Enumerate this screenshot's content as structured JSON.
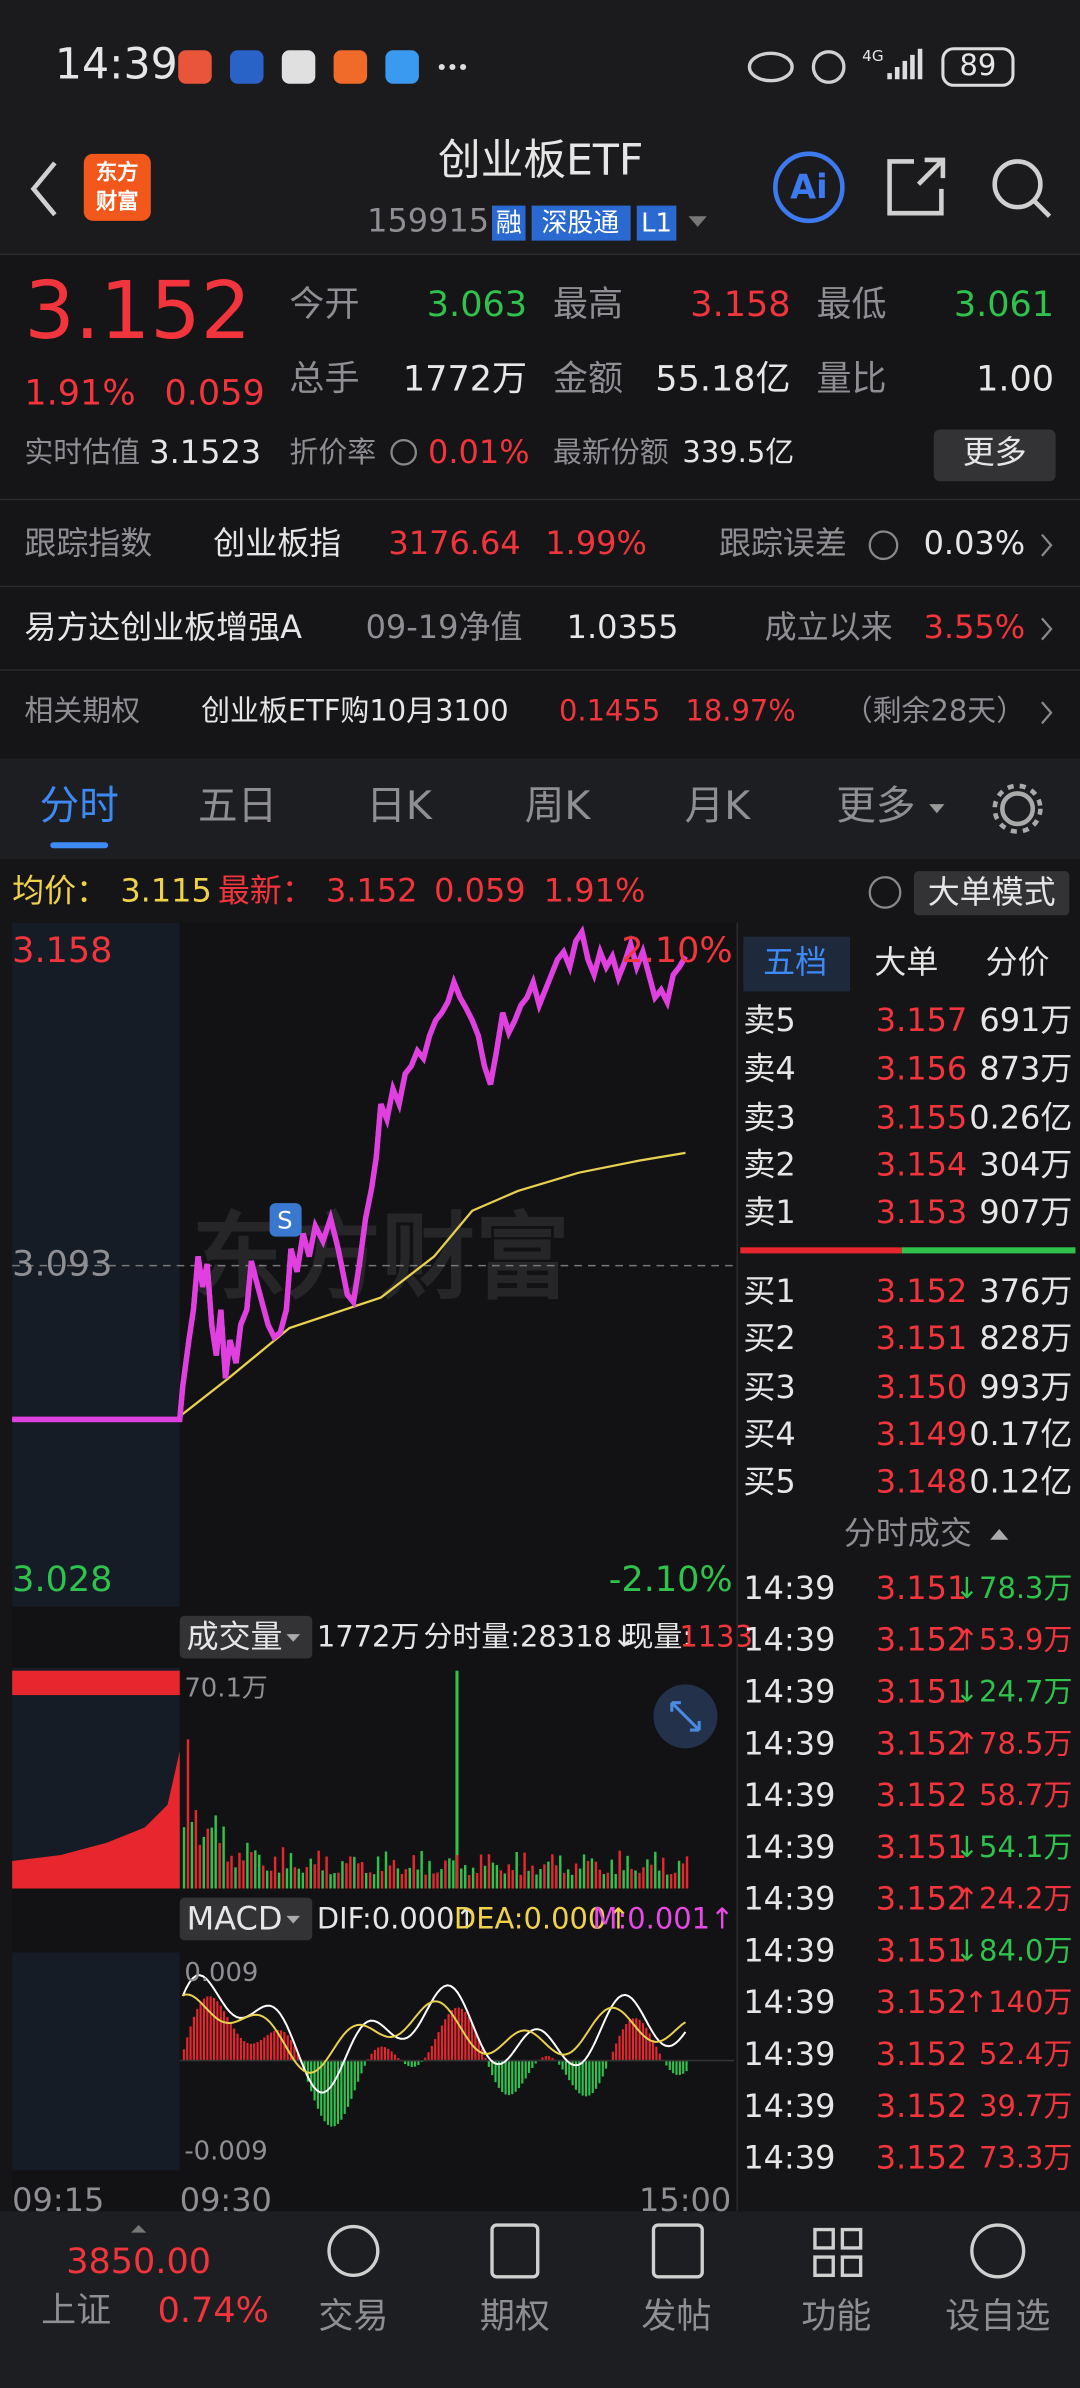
{
  "status_bar": {
    "time": "14:39",
    "network": "4G",
    "battery": "89"
  },
  "header": {
    "logo": [
      "东方",
      "财富"
    ],
    "title": "创业板ETF",
    "code": "159915",
    "badges": [
      "融",
      "深股通",
      "L1"
    ],
    "ai": "Ai"
  },
  "quote": {
    "price": "3.152",
    "change_pct": "1.91%",
    "change": "0.059",
    "stats": [
      {
        "label": "今开",
        "value": "3.063"
      },
      {
        "label": "最高",
        "value": "3.158"
      },
      {
        "label": "最低",
        "value": "3.061"
      },
      {
        "label": "总手",
        "value": "1772万"
      },
      {
        "label": "金额",
        "value": "55.18亿"
      },
      {
        "label": "量比",
        "value": "1.00"
      }
    ],
    "details": [
      {
        "label": "实时估值",
        "value": "3.1523"
      },
      {
        "label": "折价率",
        "value": "0.01%"
      },
      {
        "label": "最新份额",
        "value": "339.5亿"
      }
    ],
    "more": "更多"
  },
  "info_rows": [
    [
      "跟踪指数",
      "创业板指",
      "3176.64",
      "1.99%",
      "跟踪误差",
      "0.03%"
    ],
    [
      "易方达创业板增强A",
      "09-19净值",
      "1.0355",
      "成立以来",
      "3.55%"
    ],
    [
      "相关期权",
      "创业板ETF购10月3100",
      "0.1455",
      "18.97%",
      "（剩余28天）"
    ]
  ],
  "tabs": [
    "分时",
    "五日",
    "日K",
    "周K",
    "月K",
    "更多"
  ],
  "summary": {
    "avg_label": "均价：",
    "avg": "3.115",
    "last_label": "最新：",
    "last": "3.152",
    "change": "0.059",
    "change_pct": "1.91%",
    "mode": "大单模式"
  },
  "intraday": {
    "high": "3.158",
    "high_pct": "2.10%",
    "base": "3.093",
    "low": "3.028",
    "low_pct": "-2.10%",
    "watermark": "东方财富",
    "marker": "S"
  },
  "volume": {
    "label": "成交量",
    "total": "1772万",
    "period": "分时量:28318↓",
    "current_label": "现量:",
    "current": "1133",
    "max": "70.1万"
  },
  "macd": {
    "label": "MACD",
    "dif": "DIF:0.000↑",
    "dea": "DEA:0.000↑",
    "m": "M:0.001↑",
    "top": "0.009",
    "bottom": "-0.009"
  },
  "time_axis": [
    "09:15",
    "09:30",
    "15:00"
  ],
  "order_book": {
    "tabs": [
      "五档",
      "大单",
      "分价"
    ],
    "asks": [
      [
        "卖5",
        "3.157",
        "691万"
      ],
      [
        "卖4",
        "3.156",
        "873万"
      ],
      [
        "卖3",
        "3.155",
        "0.26亿"
      ],
      [
        "卖2",
        "3.154",
        "304万"
      ],
      [
        "卖1",
        "3.153",
        "907万"
      ]
    ],
    "bids": [
      [
        "买1",
        "3.152",
        "376万"
      ],
      [
        "买2",
        "3.151",
        "828万"
      ],
      [
        "买3",
        "3.150",
        "993万"
      ],
      [
        "买4",
        "3.149",
        "0.17亿"
      ],
      [
        "买5",
        "3.148",
        "0.12亿"
      ]
    ]
  },
  "trades": {
    "title": "分时成交",
    "rows": [
      [
        "14:39",
        "3.151",
        "↓78.3万"
      ],
      [
        "14:39",
        "3.152",
        "↑53.9万"
      ],
      [
        "14:39",
        "3.151",
        "↓24.7万"
      ],
      [
        "14:39",
        "3.152",
        "↑78.5万"
      ],
      [
        "14:39",
        "3.152",
        "58.7万"
      ],
      [
        "14:39",
        "3.151",
        "↓54.1万"
      ],
      [
        "14:39",
        "3.152",
        "↑24.2万"
      ],
      [
        "14:39",
        "3.151",
        "↓84.0万"
      ],
      [
        "14:39",
        "3.152",
        "↑140万"
      ],
      [
        "14:39",
        "3.152",
        "52.4万"
      ],
      [
        "14:39",
        "3.152",
        "39.7万"
      ],
      [
        "14:39",
        "3.152",
        "73.3万"
      ]
    ]
  },
  "bottom_nav": {
    "index_value": "3850.00",
    "index_name": "上证",
    "index_change": "0.74%",
    "items": [
      "交易",
      "期权",
      "发帖",
      "功能",
      "设自选"
    ]
  }
}
